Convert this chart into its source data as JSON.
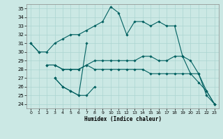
{
  "title": "",
  "xlabel": "Humidex (Indice chaleur)",
  "ylabel": "",
  "background_color": "#cbe8e4",
  "grid_color": "#aad4d0",
  "line_color": "#006060",
  "xlim": [
    -0.5,
    23.5
  ],
  "ylim": [
    23.5,
    35.5
  ],
  "yticks": [
    24,
    25,
    26,
    27,
    28,
    29,
    30,
    31,
    32,
    33,
    34,
    35
  ],
  "xticks": [
    0,
    1,
    2,
    3,
    4,
    5,
    6,
    7,
    8,
    9,
    10,
    11,
    12,
    13,
    14,
    15,
    16,
    17,
    18,
    19,
    20,
    21,
    22,
    23
  ],
  "series": [
    [
      31,
      30,
      null,
      null,
      null,
      null,
      null,
      null,
      null,
      null,
      null,
      null,
      null,
      null,
      null,
      null,
      null,
      null,
      null,
      null,
      null,
      null,
      null,
      null
    ],
    [
      31,
      30,
      30,
      31,
      31.5,
      32,
      32,
      32.5,
      33,
      33.5,
      35.2,
      34.5,
      32,
      33.5,
      33.5,
      33,
      33.5,
      33,
      33,
      29.5,
      29,
      27.5,
      25,
      24
    ],
    [
      null,
      null,
      null,
      27,
      26,
      25.5,
      25,
      25,
      26,
      null,
      null,
      null,
      null,
      null,
      null,
      null,
      null,
      null,
      null,
      null,
      null,
      null,
      null,
      null
    ],
    [
      null,
      null,
      null,
      27,
      26,
      25.5,
      25,
      31,
      null,
      null,
      null,
      null,
      null,
      null,
      null,
      null,
      null,
      null,
      null,
      null,
      null,
      null,
      null,
      null
    ],
    [
      null,
      null,
      28.5,
      28.5,
      28,
      28,
      28,
      28.5,
      29,
      29,
      29,
      29,
      29,
      29,
      29.5,
      29.5,
      29,
      29,
      29.5,
      29.5,
      27.5,
      27.5,
      25.5,
      24
    ],
    [
      null,
      null,
      28.5,
      28.5,
      28,
      28,
      28,
      28.5,
      28,
      28,
      28,
      28,
      28,
      28,
      28,
      27.5,
      27.5,
      27.5,
      27.5,
      27.5,
      27.5,
      26.5,
      25.5,
      24
    ]
  ]
}
